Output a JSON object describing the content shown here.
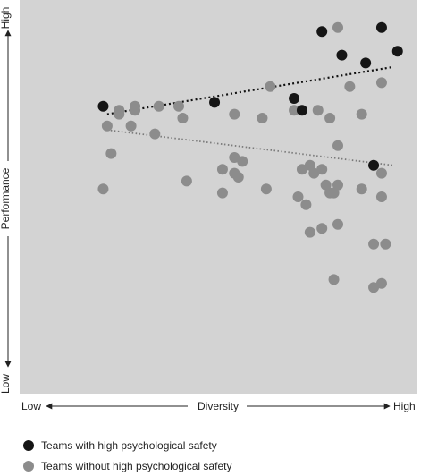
{
  "chart_data": {
    "type": "scatter",
    "title": "",
    "xlabel": "Diversity",
    "ylabel": "Performance",
    "x_low_label": "Low",
    "x_high_label": "High",
    "y_low_label": "Low",
    "y_high_label": "High",
    "xlim": [
      0,
      100
    ],
    "ylim": [
      0,
      100
    ],
    "grid": false,
    "legend_position": "bottom-left",
    "series": [
      {
        "name": "Teams with high psychological safety",
        "color": "#151515",
        "points": [
          {
            "x": 21,
            "y": 73
          },
          {
            "x": 49,
            "y": 74
          },
          {
            "x": 69,
            "y": 75
          },
          {
            "x": 71,
            "y": 72
          },
          {
            "x": 76,
            "y": 92
          },
          {
            "x": 81,
            "y": 86
          },
          {
            "x": 87,
            "y": 84
          },
          {
            "x": 91,
            "y": 93
          },
          {
            "x": 95,
            "y": 87
          },
          {
            "x": 89,
            "y": 58
          }
        ],
        "trend": [
          {
            "x": 22,
            "y": 71
          },
          {
            "x": 94,
            "y": 83
          }
        ]
      },
      {
        "name": "Teams without high psychological safety",
        "color": "#8c8c8c",
        "points": [
          {
            "x": 22,
            "y": 68
          },
          {
            "x": 23,
            "y": 61
          },
          {
            "x": 21,
            "y": 52
          },
          {
            "x": 25,
            "y": 71
          },
          {
            "x": 25,
            "y": 72
          },
          {
            "x": 28,
            "y": 68
          },
          {
            "x": 29,
            "y": 72
          },
          {
            "x": 29,
            "y": 73
          },
          {
            "x": 35,
            "y": 73
          },
          {
            "x": 34,
            "y": 66
          },
          {
            "x": 40,
            "y": 73
          },
          {
            "x": 41,
            "y": 70
          },
          {
            "x": 42,
            "y": 54
          },
          {
            "x": 51,
            "y": 57
          },
          {
            "x": 51,
            "y": 51
          },
          {
            "x": 54,
            "y": 60
          },
          {
            "x": 54,
            "y": 56
          },
          {
            "x": 55,
            "y": 55
          },
          {
            "x": 54,
            "y": 71
          },
          {
            "x": 56,
            "y": 59
          },
          {
            "x": 61,
            "y": 70
          },
          {
            "x": 62,
            "y": 52
          },
          {
            "x": 63,
            "y": 78
          },
          {
            "x": 69,
            "y": 72
          },
          {
            "x": 71,
            "y": 57
          },
          {
            "x": 70,
            "y": 50
          },
          {
            "x": 72,
            "y": 48
          },
          {
            "x": 73,
            "y": 58
          },
          {
            "x": 74,
            "y": 56
          },
          {
            "x": 76,
            "y": 57
          },
          {
            "x": 75,
            "y": 72
          },
          {
            "x": 77,
            "y": 53
          },
          {
            "x": 78,
            "y": 51
          },
          {
            "x": 78,
            "y": 70
          },
          {
            "x": 79,
            "y": 51
          },
          {
            "x": 80,
            "y": 53
          },
          {
            "x": 80,
            "y": 63
          },
          {
            "x": 76,
            "y": 42
          },
          {
            "x": 73,
            "y": 41
          },
          {
            "x": 80,
            "y": 43
          },
          {
            "x": 79,
            "y": 29
          },
          {
            "x": 80,
            "y": 93
          },
          {
            "x": 83,
            "y": 78
          },
          {
            "x": 86,
            "y": 71
          },
          {
            "x": 86,
            "y": 52
          },
          {
            "x": 91,
            "y": 56
          },
          {
            "x": 91,
            "y": 50
          },
          {
            "x": 91,
            "y": 79
          },
          {
            "x": 89,
            "y": 38
          },
          {
            "x": 92,
            "y": 38
          },
          {
            "x": 89,
            "y": 27
          },
          {
            "x": 91,
            "y": 28
          }
        ],
        "trend": [
          {
            "x": 22,
            "y": 67
          },
          {
            "x": 94,
            "y": 58
          }
        ]
      }
    ]
  }
}
